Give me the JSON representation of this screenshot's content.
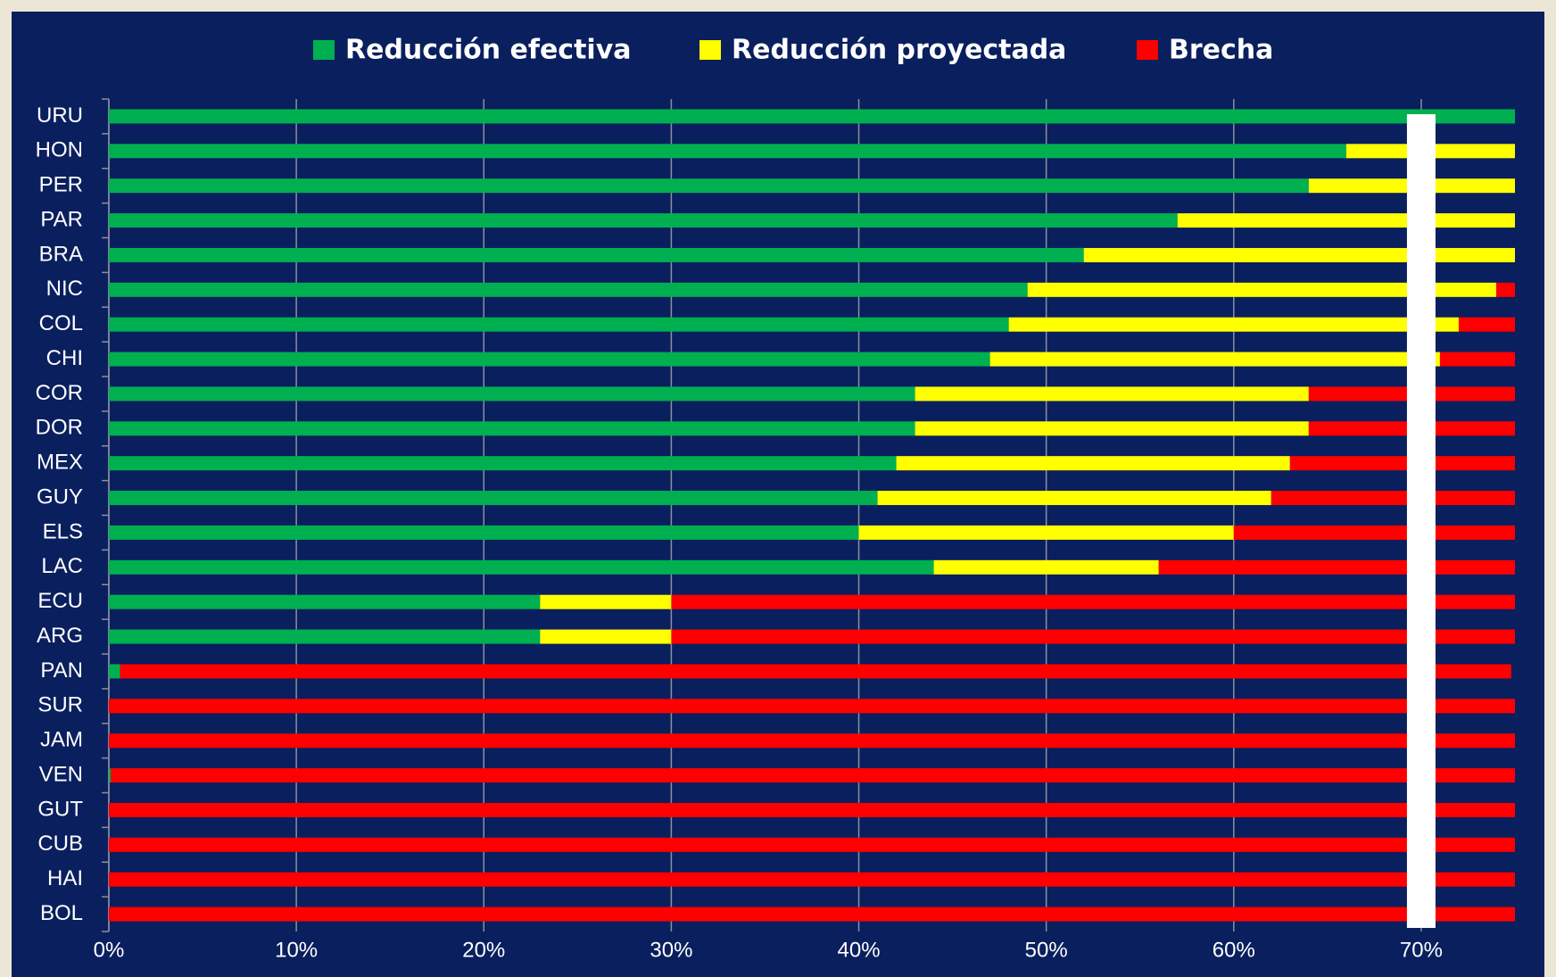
{
  "chart_data": {
    "type": "stacked_barh",
    "categories": [
      "URU",
      "HON",
      "PER",
      "PAR",
      "BRA",
      "NIC",
      "COL",
      "CHI",
      "COR",
      "DOR",
      "MEX",
      "GUY",
      "ELS",
      "LAC",
      "ECU",
      "ARG",
      "PAN",
      "SUR",
      "JAM",
      "VEN",
      "GUT",
      "CUB",
      "HAI",
      "BOL"
    ],
    "series": [
      {
        "name": "Reducción efectiva",
        "color": "#00b050",
        "values": [
          75,
          66,
          64,
          57,
          52,
          49,
          48,
          47,
          43,
          43,
          42,
          41,
          40,
          44,
          23,
          23,
          0.6,
          0,
          0,
          0.1,
          0,
          0,
          0,
          0
        ]
      },
      {
        "name": "Reducción proyectada",
        "color": "#ffff00",
        "values": [
          0,
          9,
          11,
          18,
          23,
          25,
          24,
          24,
          21,
          21,
          21,
          21,
          20,
          12,
          7,
          7,
          0,
          0,
          0,
          0,
          0,
          0,
          0,
          0
        ]
      },
      {
        "name": "Brecha",
        "color": "#ff0000",
        "values": [
          0,
          0,
          0,
          0,
          0,
          1,
          3,
          4,
          11,
          11,
          12,
          13,
          15,
          19,
          45,
          45,
          74.2,
          75,
          75,
          74.9,
          75,
          75,
          75,
          75
        ]
      }
    ],
    "xlim": [
      0,
      75
    ],
    "xticks": [
      {
        "value": 0,
        "label": "0%"
      },
      {
        "value": 10,
        "label": "10%"
      },
      {
        "value": 20,
        "label": "20%"
      },
      {
        "value": 30,
        "label": "30%"
      },
      {
        "value": 40,
        "label": "40%"
      },
      {
        "value": 50,
        "label": "50%"
      },
      {
        "value": 60,
        "label": "60%"
      },
      {
        "value": 70,
        "label": "70%"
      }
    ],
    "grid": true,
    "reference_line": 70,
    "legend": "top"
  }
}
